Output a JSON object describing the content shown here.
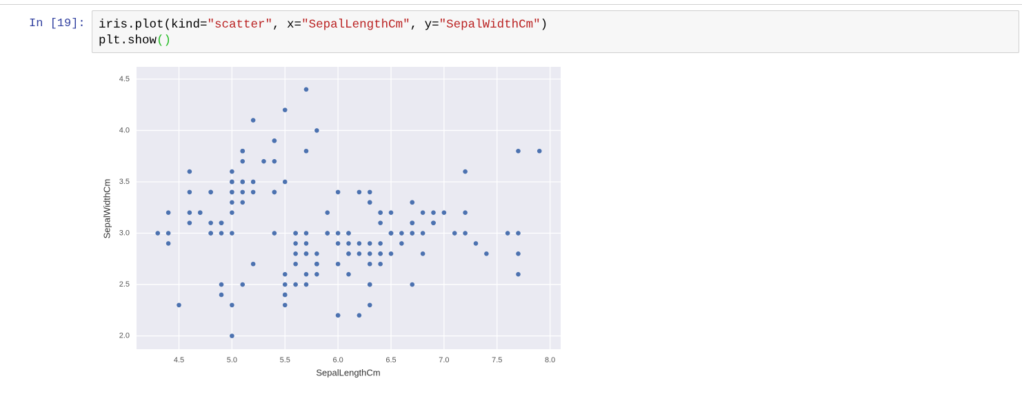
{
  "cell": {
    "prompt": "In [19]:",
    "code": [
      [
        {
          "text": "iris.plot(kind=",
          "color": "#000000"
        },
        {
          "text": "\"scatter\"",
          "color": "#ba2121"
        },
        {
          "text": ", x=",
          "color": "#000000"
        },
        {
          "text": "\"SepalLengthCm\"",
          "color": "#ba2121"
        },
        {
          "text": ", y=",
          "color": "#000000"
        },
        {
          "text": "\"SepalWidthCm\"",
          "color": "#ba2121"
        },
        {
          "text": ")",
          "color": "#000000"
        }
      ],
      [
        {
          "text": "plt.show",
          "color": "#000000"
        },
        {
          "text": "()",
          "color": "#22bb22"
        }
      ]
    ]
  },
  "chart_data": {
    "type": "scatter",
    "x_label": "SepalLengthCm",
    "y_label": "SepalWidthCm",
    "color": "#4c72b0",
    "grid": true,
    "xlim": [
      4.1,
      8.1
    ],
    "ylim": [
      1.87,
      4.62
    ],
    "xticks": [
      4.5,
      {
        "value": 5,
        "label": "5.0"
      },
      5.5,
      {
        "value": 6,
        "label": "6.0"
      },
      6.5,
      {
        "value": 7,
        "label": "7.0"
      },
      7.5,
      {
        "value": 8,
        "label": "8.0"
      }
    ],
    "yticks": [
      {
        "value": 2,
        "label": "2.0"
      },
      2.5,
      {
        "value": 3,
        "label": "3.0"
      },
      3.5,
      {
        "value": 4,
        "label": "4.0"
      },
      4.5
    ],
    "x": [
      5.1,
      4.9,
      4.7,
      4.6,
      5.0,
      5.4,
      4.6,
      5.0,
      4.4,
      4.9,
      5.4,
      4.8,
      4.8,
      4.3,
      5.8,
      5.7,
      5.4,
      5.1,
      5.7,
      5.1,
      5.4,
      5.1,
      4.6,
      5.1,
      4.8,
      5.0,
      5.0,
      5.2,
      5.2,
      4.7,
      4.8,
      5.4,
      5.2,
      5.5,
      4.9,
      5.0,
      5.5,
      4.9,
      4.4,
      5.1,
      5.0,
      4.5,
      4.4,
      5.0,
      5.1,
      4.8,
      5.1,
      4.6,
      5.3,
      5.0,
      7.0,
      6.4,
      6.9,
      5.5,
      6.5,
      5.7,
      6.3,
      4.9,
      6.6,
      5.2,
      5.0,
      5.9,
      6.0,
      6.1,
      5.6,
      6.7,
      5.6,
      5.8,
      6.2,
      5.6,
      5.9,
      6.1,
      6.3,
      6.1,
      6.4,
      6.6,
      6.8,
      6.7,
      6.0,
      5.7,
      5.5,
      5.5,
      5.8,
      6.0,
      5.4,
      6.0,
      6.7,
      6.3,
      5.6,
      5.5,
      5.5,
      6.1,
      5.8,
      5.0,
      5.6,
      5.7,
      5.7,
      6.2,
      5.1,
      5.7,
      6.3,
      5.8,
      7.1,
      6.3,
      6.5,
      7.6,
      4.9,
      7.3,
      6.7,
      7.2,
      6.5,
      6.4,
      6.8,
      5.7,
      5.8,
      6.4,
      6.5,
      7.7,
      7.7,
      6.0,
      6.9,
      5.6,
      7.7,
      6.3,
      6.7,
      7.2,
      6.2,
      6.1,
      6.4,
      7.2,
      7.4,
      7.9,
      6.4,
      6.3,
      6.1,
      7.7,
      6.3,
      6.4,
      6.0,
      6.9,
      6.7,
      6.9,
      5.8,
      6.8,
      6.7,
      6.7,
      6.3,
      6.5,
      6.2,
      5.9
    ],
    "y": [
      3.5,
      3.0,
      3.2,
      3.1,
      3.6,
      3.9,
      3.4,
      3.4,
      2.9,
      3.1,
      3.7,
      3.4,
      3.0,
      3.0,
      4.0,
      4.4,
      3.9,
      3.5,
      3.8,
      3.8,
      3.4,
      3.7,
      3.6,
      3.3,
      3.4,
      3.0,
      3.4,
      3.5,
      3.4,
      3.2,
      3.1,
      3.4,
      4.1,
      4.2,
      3.1,
      3.2,
      3.5,
      3.1,
      3.0,
      3.4,
      3.5,
      2.3,
      3.2,
      3.5,
      3.8,
      3.0,
      3.8,
      3.2,
      3.7,
      3.3,
      3.2,
      3.2,
      3.1,
      2.3,
      2.8,
      2.8,
      3.3,
      2.4,
      2.9,
      2.7,
      2.0,
      3.0,
      2.2,
      2.9,
      2.9,
      3.1,
      3.0,
      2.7,
      2.2,
      2.5,
      3.2,
      2.8,
      2.5,
      2.8,
      2.9,
      3.0,
      2.8,
      3.0,
      2.9,
      2.6,
      2.4,
      2.4,
      2.7,
      2.7,
      3.0,
      3.4,
      3.1,
      2.3,
      3.0,
      2.5,
      2.6,
      3.0,
      2.6,
      2.3,
      2.7,
      3.0,
      2.9,
      2.9,
      2.5,
      2.8,
      3.3,
      2.7,
      3.0,
      2.9,
      3.0,
      3.0,
      2.5,
      2.9,
      2.5,
      3.6,
      3.2,
      2.7,
      3.0,
      2.5,
      2.8,
      3.2,
      3.0,
      3.8,
      2.6,
      2.2,
      3.2,
      2.8,
      2.8,
      2.7,
      3.3,
      3.2,
      2.8,
      3.0,
      2.8,
      3.0,
      2.8,
      3.8,
      2.8,
      2.8,
      2.6,
      3.0,
      3.4,
      3.1,
      3.0,
      3.1,
      3.1,
      3.1,
      2.7,
      3.2,
      3.3,
      3.0,
      2.5,
      3.0,
      3.4,
      3.0
    ]
  }
}
